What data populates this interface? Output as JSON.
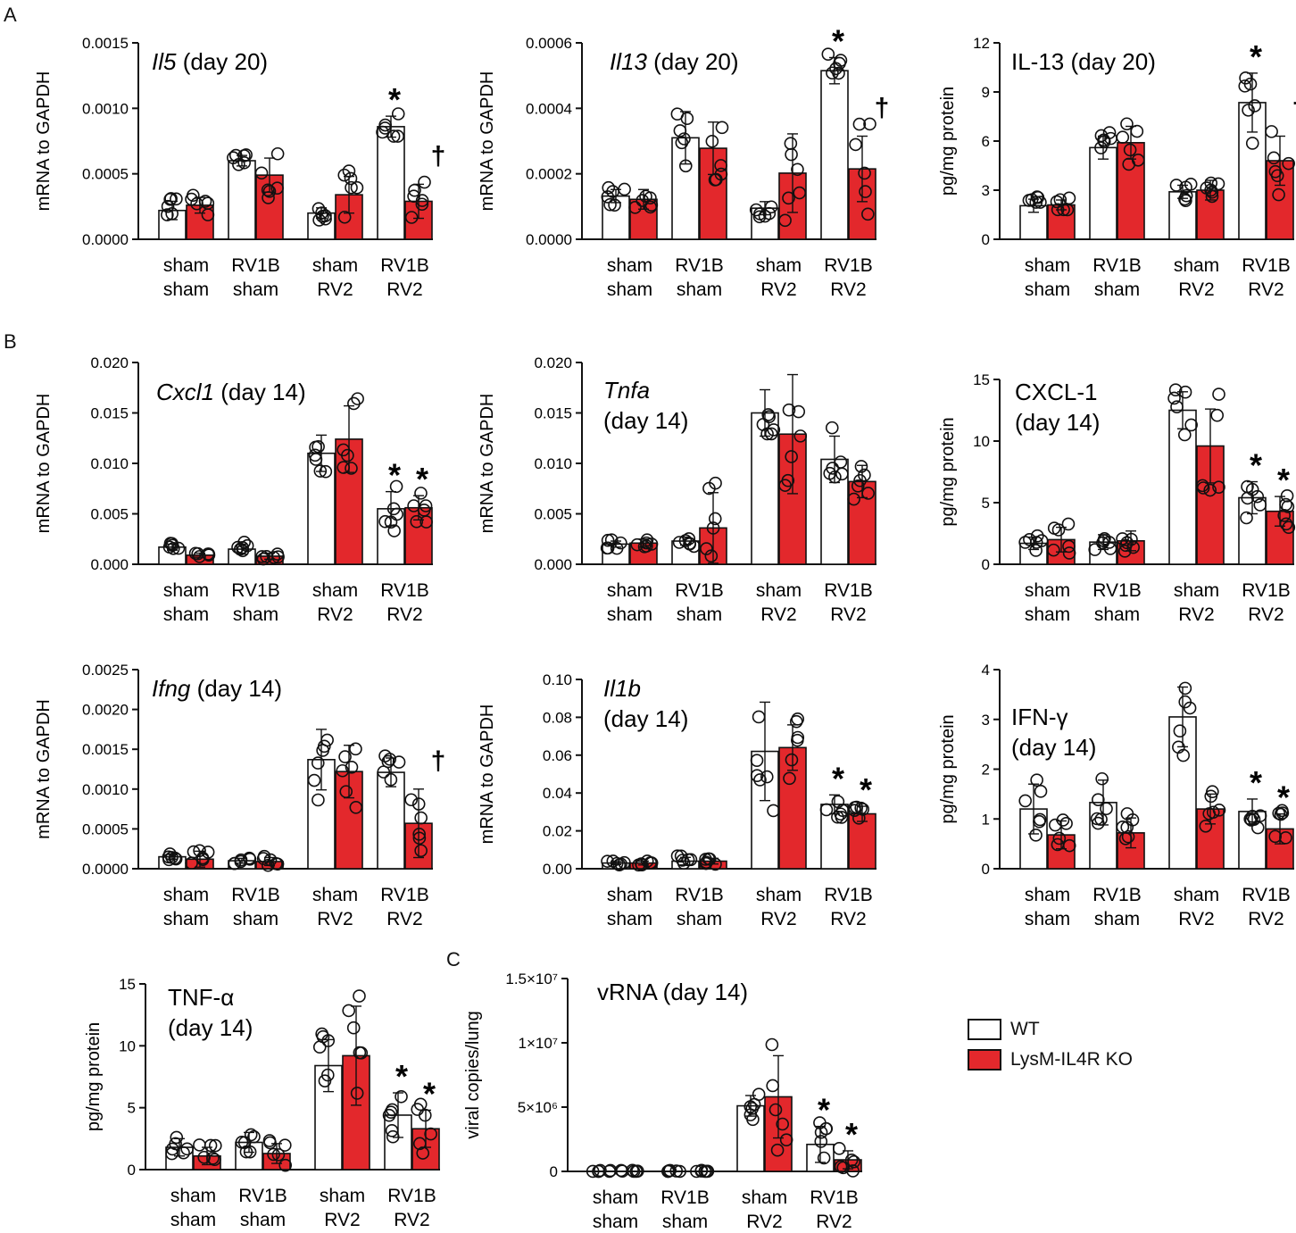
{
  "panel_labels": {
    "a": "A",
    "b": "B",
    "c": "C"
  },
  "colors": {
    "wt": "#ffffff",
    "ko": "#e3282c",
    "axis": "#111111"
  },
  "legend": [
    {
      "name": "WT",
      "color": "#ffffff"
    },
    {
      "name": "LysM-IL4R KO",
      "color": "#e3282c"
    }
  ],
  "categories": [
    [
      "sham",
      "sham"
    ],
    [
      "RV1B",
      "sham"
    ],
    [
      "sham",
      "RV2"
    ],
    [
      "RV1B",
      "RV2"
    ]
  ],
  "chart_data": [
    {
      "type": "bar",
      "id": "il5",
      "title": [
        {
          "t": "Il5",
          "i": true
        },
        {
          "t": " (day 20)",
          "i": false
        }
      ],
      "ylabel": "mRNA to GAPDH",
      "ylim": [
        0,
        0.0015
      ],
      "yticks": [
        "0.0000",
        "0.0005",
        "0.0010",
        "0.0015"
      ],
      "series": [
        {
          "name": "WT",
          "values": [
            0.00022,
            0.0006,
            0.0002,
            0.00086
          ],
          "err": [
            7e-05,
            4e-05,
            4e-05,
            8e-05
          ]
        },
        {
          "name": "LysM-IL4R KO",
          "values": [
            0.00026,
            0.00049,
            0.00034,
            0.00029
          ],
          "err": [
            6e-05,
            0.00013,
            0.00014,
            0.00013
          ]
        }
      ],
      "sig": [
        {
          "group": 3,
          "series": 0,
          "mark": "*"
        },
        {
          "group": 3,
          "series": 1,
          "mark": "†"
        }
      ]
    },
    {
      "type": "bar",
      "id": "il13",
      "title": [
        {
          "t": "Il13",
          "i": true
        },
        {
          "t": " (day 20)",
          "i": false
        }
      ],
      "ylabel": "mRNA to GAPDH",
      "ylim": [
        0,
        0.0006
      ],
      "yticks": [
        "0.0000",
        "0.0002",
        "0.0004",
        "0.0006"
      ],
      "series": [
        {
          "name": "WT",
          "values": [
            0.000132,
            0.00031,
            9.5e-05,
            0.000515
          ],
          "err": [
            2e-05,
            8e-05,
            2e-05,
            4e-05
          ]
        },
        {
          "name": "LysM-IL4R KO",
          "values": [
            0.000122,
            0.000278,
            0.000202,
            0.000215
          ],
          "err": [
            3e-05,
            8e-05,
            0.00012,
            0.0001
          ]
        }
      ],
      "sig": [
        {
          "group": 3,
          "series": 0,
          "mark": "*"
        },
        {
          "group": 3,
          "series": 1,
          "mark": "†"
        }
      ]
    },
    {
      "type": "bar",
      "id": "il13prot",
      "title": [
        {
          "t": "IL-13 (day 20)",
          "i": false
        }
      ],
      "ylabel": "pg/mg protein",
      "ylim": [
        0,
        12
      ],
      "yticks": [
        "0",
        "3",
        "6",
        "9",
        "12"
      ],
      "series": [
        {
          "name": "WT",
          "values": [
            2.05,
            5.6,
            2.9,
            8.35
          ],
          "err": [
            0.4,
            0.7,
            0.4,
            1.8
          ]
        },
        {
          "name": "LysM-IL4R KO",
          "values": [
            2.1,
            5.9,
            3.0,
            4.8
          ],
          "err": [
            0.3,
            1.0,
            0.6,
            1.5
          ]
        }
      ],
      "sig": [
        {
          "group": 3,
          "series": 0,
          "mark": "*"
        },
        {
          "group": 3,
          "series": 1,
          "mark": "†"
        }
      ]
    },
    {
      "type": "bar",
      "id": "cxcl1",
      "title": [
        {
          "t": "Cxcl1",
          "i": true
        },
        {
          "t": " (day 14)",
          "i": false
        }
      ],
      "ylabel": "mRNA to GAPDH",
      "ylim": [
        0,
        0.02
      ],
      "yticks": [
        "0.000",
        "0.005",
        "0.010",
        "0.015",
        "0.020"
      ],
      "series": [
        {
          "name": "WT",
          "values": [
            0.0017,
            0.0015,
            0.011,
            0.0055
          ],
          "err": [
            0.0003,
            0.0005,
            0.0018,
            0.0017
          ]
        },
        {
          "name": "LysM-IL4R KO",
          "values": [
            0.0009,
            0.0008,
            0.0124,
            0.0056
          ],
          "err": [
            0.0002,
            0.0003,
            0.0033,
            0.0012
          ]
        }
      ],
      "sig": [
        {
          "group": 3,
          "series": 0,
          "mark": "*"
        },
        {
          "group": 3,
          "series": 1,
          "mark": "*"
        }
      ]
    },
    {
      "type": "bar",
      "id": "tnfa",
      "title": [
        {
          "t": "Tnfa",
          "i": true
        },
        {
          "t": "(day 14)",
          "i": false,
          "br": true
        }
      ],
      "ylabel": "mRNA to GAPDH",
      "ylim": [
        0,
        0.02
      ],
      "yticks": [
        "0.000",
        "0.005",
        "0.010",
        "0.015",
        "0.020"
      ],
      "series": [
        {
          "name": "WT",
          "values": [
            0.002,
            0.0023,
            0.015,
            0.0104
          ],
          "err": [
            0.0003,
            0.0004,
            0.0023,
            0.0023
          ]
        },
        {
          "name": "LysM-IL4R KO",
          "values": [
            0.0021,
            0.0036,
            0.0129,
            0.0082
          ],
          "err": [
            0.0004,
            0.0035,
            0.0059,
            0.0016
          ]
        }
      ],
      "sig": []
    },
    {
      "type": "bar",
      "id": "cxcl1prot",
      "title": [
        {
          "t": "CXCL-1",
          "i": false
        },
        {
          "t": "(day 14)",
          "i": false,
          "br": true
        }
      ],
      "ylabel": "pg/mg protein",
      "ylim": [
        0,
        15
      ],
      "yticks": [
        "0",
        "5",
        "10",
        "15"
      ],
      "series": [
        {
          "name": "WT",
          "values": [
            1.7,
            1.8,
            12.5,
            5.4
          ],
          "err": [
            0.5,
            0.6,
            1.5,
            1.3
          ]
        },
        {
          "name": "LysM-IL4R KO",
          "values": [
            2.0,
            1.9,
            9.6,
            4.3
          ],
          "err": [
            1.0,
            0.8,
            3.0,
            1.2
          ]
        }
      ],
      "sig": [
        {
          "group": 3,
          "series": 0,
          "mark": "*"
        },
        {
          "group": 3,
          "series": 1,
          "mark": "*"
        }
      ]
    },
    {
      "type": "bar",
      "id": "ifng",
      "title": [
        {
          "t": "Ifng",
          "i": true
        },
        {
          "t": " (day 14)",
          "i": false
        }
      ],
      "ylabel": "mRNA to GAPDH",
      "ylim": [
        0,
        0.0025
      ],
      "yticks": [
        "0.0000",
        "0.0005",
        "0.0010",
        "0.0015",
        "0.0020",
        "0.0025"
      ],
      "series": [
        {
          "name": "WT",
          "values": [
            0.00015,
            0.0001,
            0.00137,
            0.00121
          ],
          "err": [
            3e-05,
            3e-05,
            0.00038,
            0.00018
          ]
        },
        {
          "name": "LysM-IL4R KO",
          "values": [
            0.00012,
            9e-05,
            0.00122,
            0.00057
          ],
          "err": [
            0.0001,
            5e-05,
            0.00033,
            0.00043
          ]
        }
      ],
      "sig": [
        {
          "group": 3,
          "series": 1,
          "mark": "†"
        }
      ]
    },
    {
      "type": "bar",
      "id": "il1b",
      "title": [
        {
          "t": "Il1b",
          "i": true
        },
        {
          "t": "(day 14)",
          "i": false,
          "br": true
        }
      ],
      "ylabel": "mRNA to GAPDH",
      "ylim": [
        0,
        0.1
      ],
      "yticks": [
        "0.00",
        "0.02",
        "0.04",
        "0.06",
        "0.08",
        "0.10"
      ],
      "series": [
        {
          "name": "WT",
          "values": [
            0.003,
            0.004,
            0.062,
            0.034
          ],
          "err": [
            0.0008,
            0.002,
            0.026,
            0.005
          ]
        },
        {
          "name": "LysM-IL4R KO",
          "values": [
            0.003,
            0.004,
            0.064,
            0.029
          ],
          "err": [
            0.001,
            0.0015,
            0.012,
            0.004
          ]
        }
      ],
      "sig": [
        {
          "group": 3,
          "series": 0,
          "mark": "*"
        },
        {
          "group": 3,
          "series": 1,
          "mark": "*"
        }
      ]
    },
    {
      "type": "bar",
      "id": "ifngprot",
      "title": [
        {
          "t": "IFN-γ",
          "i": false
        },
        {
          "t": "(day 14)",
          "i": false,
          "br": true
        }
      ],
      "ylabel": "pg/mg protein",
      "ylim": [
        0,
        4
      ],
      "yticks": [
        "0",
        "1",
        "2",
        "3",
        "4"
      ],
      "series": [
        {
          "name": "WT",
          "values": [
            1.2,
            1.33,
            3.05,
            1.15
          ],
          "err": [
            0.5,
            0.45,
            0.6,
            0.25
          ]
        },
        {
          "name": "LysM-IL4R KO",
          "values": [
            0.68,
            0.72,
            1.2,
            0.8
          ],
          "err": [
            0.28,
            0.3,
            0.3,
            0.3
          ]
        }
      ],
      "sig": [
        {
          "group": 3,
          "series": 0,
          "mark": "*"
        },
        {
          "group": 3,
          "series": 1,
          "mark": "*"
        }
      ]
    },
    {
      "type": "bar",
      "id": "tnfaprot",
      "title": [
        {
          "t": "TNF-α",
          "i": false
        },
        {
          "t": "(day 14)",
          "i": false,
          "br": true
        }
      ],
      "ylabel": "pg/mg protein",
      "ylim": [
        0,
        15
      ],
      "yticks": [
        "0",
        "5",
        "10",
        "15"
      ],
      "series": [
        {
          "name": "WT",
          "values": [
            1.8,
            2.2,
            8.4,
            4.4
          ],
          "err": [
            0.7,
            0.8,
            2.1,
            1.8
          ]
        },
        {
          "name": "LysM-IL4R KO",
          "values": [
            1.1,
            1.3,
            9.2,
            3.3
          ],
          "err": [
            0.7,
            0.8,
            4.0,
            1.5
          ]
        }
      ],
      "sig": [
        {
          "group": 3,
          "series": 0,
          "mark": "*"
        },
        {
          "group": 3,
          "series": 1,
          "mark": "*"
        }
      ]
    },
    {
      "type": "bar",
      "id": "vrna",
      "title": [
        {
          "t": "vRNA (day 14)",
          "i": false
        }
      ],
      "ylabel": "viral copies/lung",
      "ylim": [
        0,
        15000000
      ],
      "yticks": [
        "0",
        "5×10⁶",
        "1×10⁷",
        "1.5×10⁷"
      ],
      "series": [
        {
          "name": "WT",
          "values": [
            0,
            0,
            5100000,
            2100000
          ],
          "err": [
            0,
            0,
            800000,
            1400000
          ]
        },
        {
          "name": "LysM-IL4R KO",
          "values": [
            0,
            0,
            5800000,
            900000
          ],
          "err": [
            0,
            0,
            3200000,
            700000
          ]
        }
      ],
      "sig": [
        {
          "group": 3,
          "series": 0,
          "mark": "*"
        },
        {
          "group": 3,
          "series": 1,
          "mark": "*"
        }
      ]
    }
  ]
}
